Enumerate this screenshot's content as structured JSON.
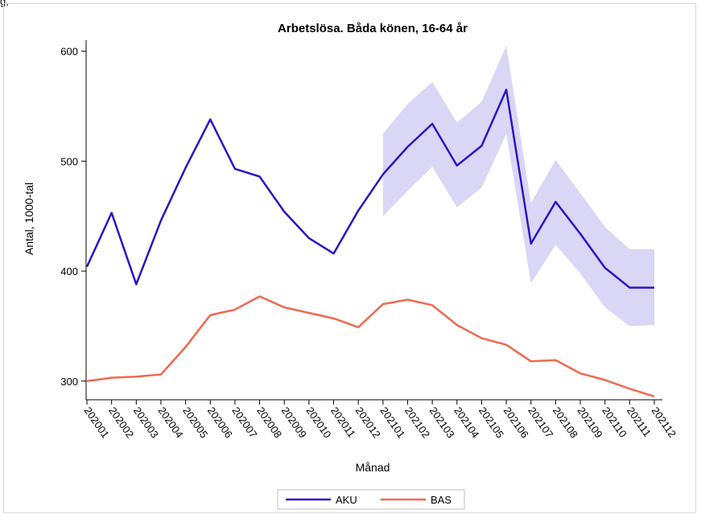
{
  "corner_text": "g,",
  "chart_data": {
    "type": "line",
    "title": "Arbetslösa. Båda könen, 16-64 år",
    "xlabel": "Månad",
    "ylabel": "Antal, 1000-tal",
    "ylim": [
      283,
      610
    ],
    "yticks": [
      300,
      400,
      500,
      600
    ],
    "grid": false,
    "legend_position": "bottom-center",
    "categories": [
      "202001",
      "202002",
      "202003",
      "202004",
      "202005",
      "202006",
      "202007",
      "202008",
      "202009",
      "202010",
      "202011",
      "202012",
      "202101",
      "202102",
      "202103",
      "202104",
      "202105",
      "202106",
      "202107",
      "202108",
      "202109",
      "202110",
      "202111",
      "202112"
    ],
    "series": [
      {
        "name": "AKU",
        "color": "#2a14c8",
        "values": [
          404,
          453,
          388,
          446,
          494,
          538,
          493,
          486,
          454,
          430,
          416,
          455,
          488,
          513,
          534,
          496,
          514,
          565,
          425,
          463,
          434,
          403,
          385,
          385
        ],
        "band": {
          "color": "#d9d6f6",
          "start_index": 12,
          "lower": [
            450,
            473,
            495,
            458,
            476,
            525,
            389,
            424,
            398,
            367,
            350,
            351
          ],
          "upper": [
            525,
            552,
            572,
            535,
            554,
            605,
            462,
            501,
            471,
            440,
            420,
            420
          ]
        }
      },
      {
        "name": "BAS",
        "color": "#f0684e",
        "values": [
          300,
          303,
          304,
          306,
          331,
          360,
          365,
          377,
          367,
          362,
          357,
          349,
          370,
          374,
          369,
          351,
          339,
          333,
          318,
          319,
          307,
          301,
          293,
          286
        ]
      }
    ]
  }
}
